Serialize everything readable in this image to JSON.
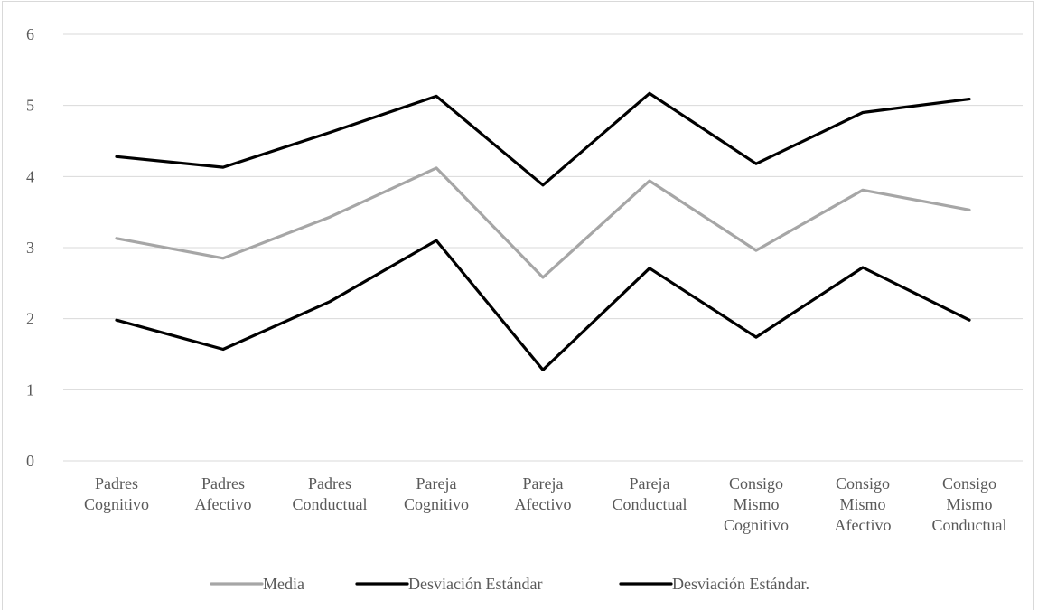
{
  "chart_data": {
    "type": "line",
    "title": "",
    "xlabel": "",
    "ylabel": "",
    "ylim": [
      0,
      6
    ],
    "y_ticks": [
      0,
      1,
      2,
      3,
      4,
      5,
      6
    ],
    "grid": true,
    "legend_position": "bottom",
    "categories": [
      [
        "Padres",
        "Cognitivo"
      ],
      [
        "Padres",
        "Afectivo"
      ],
      [
        "Padres",
        "Conductual"
      ],
      [
        "Pareja",
        "Cognitivo"
      ],
      [
        "Pareja",
        "Afectivo"
      ],
      [
        "Pareja",
        "Conductual"
      ],
      [
        "Consigo",
        "Mismo",
        "Cognitivo"
      ],
      [
        "Consigo",
        "Mismo",
        "Afectivo"
      ],
      [
        "Consigo",
        "Mismo",
        "Conductual"
      ]
    ],
    "series": [
      {
        "name": "Media",
        "color": "#a6a6a6",
        "values": [
          3.13,
          2.85,
          3.43,
          4.12,
          2.58,
          3.94,
          2.96,
          3.81,
          3.53
        ]
      },
      {
        "name": "Desviación Estándar",
        "color": "#000000",
        "values": [
          4.28,
          4.13,
          4.62,
          5.13,
          3.88,
          5.17,
          4.18,
          4.9,
          5.09
        ]
      },
      {
        "name": "Desviación Estándar.",
        "color": "#000000",
        "values": [
          1.98,
          1.57,
          2.24,
          3.1,
          1.28,
          2.71,
          1.74,
          2.72,
          1.98
        ]
      }
    ]
  }
}
